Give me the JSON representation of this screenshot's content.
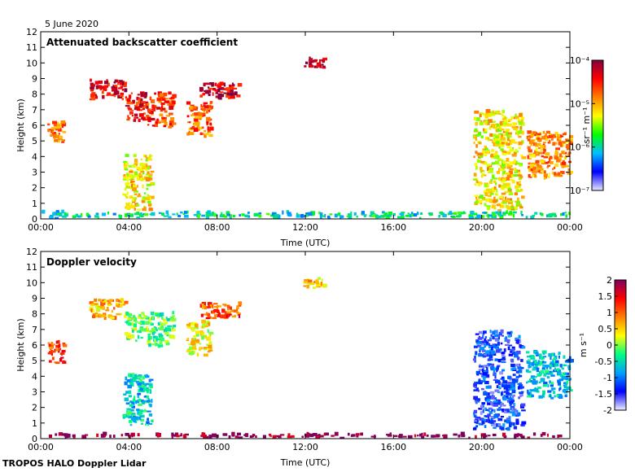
{
  "date_label": "5 June 2020",
  "footer_label": "TROPOS HALO Doppler Lidar",
  "colors": {
    "backscatter_scale": [
      "#e8e8ff",
      "#0000ff",
      "#00c0ff",
      "#00ff00",
      "#ffff00",
      "#ff8000",
      "#ff0000",
      "#800040"
    ],
    "velocity_scale": [
      "#f0f0ff",
      "#0000ff",
      "#00a0ff",
      "#00ff80",
      "#ffff00",
      "#ff8000",
      "#ff0000",
      "#800060"
    ],
    "background": "#ffffff"
  },
  "chart_data": [
    {
      "type": "heatmap",
      "title": "Attenuated backscatter coefficient",
      "xlabel": "Time (UTC)",
      "ylabel": "Height (km)",
      "x_ticks": [
        "00:00",
        "04:00",
        "08:00",
        "12:00",
        "16:00",
        "20:00",
        "00:00"
      ],
      "x_range_hours": [
        0,
        24
      ],
      "y_ticks": [
        "0",
        "1",
        "2",
        "3",
        "4",
        "5",
        "6",
        "7",
        "8",
        "9",
        "10",
        "11",
        "12"
      ],
      "ylim": [
        0,
        12
      ],
      "colorbar": {
        "label": "sr⁻¹ m⁻¹",
        "scale": "log",
        "ticks": [
          "10⁻⁴",
          "10⁻⁵",
          "10⁻⁶",
          "10⁻⁷"
        ],
        "range": [
          1e-07,
          0.0001
        ]
      },
      "features": [
        {
          "t0": 0.3,
          "t1": 1.0,
          "h0": 4.7,
          "h1": 6.1,
          "level": 0.72
        },
        {
          "t0": 2.2,
          "t1": 3.8,
          "h0": 7.6,
          "h1": 8.8,
          "level": 0.88
        },
        {
          "t0": 3.8,
          "t1": 4.8,
          "h0": 6.2,
          "h1": 8.0,
          "level": 0.85
        },
        {
          "t0": 4.8,
          "t1": 6.0,
          "h0": 5.8,
          "h1": 8.0,
          "level": 0.8
        },
        {
          "t0": 6.6,
          "t1": 7.7,
          "h0": 5.2,
          "h1": 7.4,
          "level": 0.75
        },
        {
          "t0": 7.2,
          "t1": 9.0,
          "h0": 7.6,
          "h1": 8.6,
          "level": 0.9
        },
        {
          "t0": 3.7,
          "t1": 5.0,
          "h0": 0.5,
          "h1": 4.0,
          "level": 0.6
        },
        {
          "t0": 11.9,
          "t1": 12.8,
          "h0": 9.6,
          "h1": 10.2,
          "level": 0.97
        },
        {
          "t0": 19.6,
          "t1": 21.8,
          "h0": 0.5,
          "h1": 6.8,
          "level": 0.6
        },
        {
          "t0": 22.0,
          "t1": 24.0,
          "h0": 2.5,
          "h1": 5.5,
          "level": 0.7
        },
        {
          "t0": 0.0,
          "t1": 24.0,
          "h0": 0.0,
          "h1": 0.35,
          "level": 0.35
        }
      ]
    },
    {
      "type": "heatmap",
      "title": "Doppler velocity",
      "xlabel": "Time (UTC)",
      "ylabel": "Height (km)",
      "x_ticks": [
        "00:00",
        "04:00",
        "08:00",
        "12:00",
        "16:00",
        "20:00",
        "00:00"
      ],
      "x_range_hours": [
        0,
        24
      ],
      "y_ticks": [
        "0",
        "1",
        "2",
        "3",
        "4",
        "5",
        "6",
        "7",
        "8",
        "9",
        "10",
        "11",
        "12"
      ],
      "ylim": [
        0,
        12
      ],
      "colorbar": {
        "label": "m s⁻¹",
        "scale": "linear",
        "ticks": [
          "2",
          "1.5",
          "1",
          "0.5",
          "0",
          "-0.5",
          "-1",
          "-1.5",
          "-2"
        ],
        "range": [
          -2,
          2
        ]
      },
      "features": [
        {
          "t0": 0.3,
          "t1": 1.0,
          "h0": 4.7,
          "h1": 6.1,
          "value": 1.2
        },
        {
          "t0": 2.2,
          "t1": 3.8,
          "h0": 7.6,
          "h1": 8.8,
          "value": 0.6
        },
        {
          "t0": 3.8,
          "t1": 4.8,
          "h0": 6.2,
          "h1": 8.0,
          "value": 0.0
        },
        {
          "t0": 4.8,
          "t1": 6.0,
          "h0": 5.8,
          "h1": 8.0,
          "value": -0.1
        },
        {
          "t0": 6.6,
          "t1": 7.7,
          "h0": 5.2,
          "h1": 7.4,
          "value": 0.3
        },
        {
          "t0": 7.2,
          "t1": 9.0,
          "h0": 7.6,
          "h1": 8.6,
          "value": 1.1
        },
        {
          "t0": 3.7,
          "t1": 5.0,
          "h0": 0.8,
          "h1": 4.0,
          "value": -0.6
        },
        {
          "t0": 11.9,
          "t1": 12.8,
          "h0": 9.6,
          "h1": 10.2,
          "value": 0.5
        },
        {
          "t0": 19.6,
          "t1": 21.8,
          "h0": 0.5,
          "h1": 6.8,
          "value": -1.3
        },
        {
          "t0": 22.0,
          "t1": 24.0,
          "h0": 2.5,
          "h1": 5.5,
          "value": -0.7
        },
        {
          "t0": 0.0,
          "t1": 24.0,
          "h0": 0.0,
          "h1": 0.2,
          "value": 2.0
        }
      ]
    }
  ]
}
